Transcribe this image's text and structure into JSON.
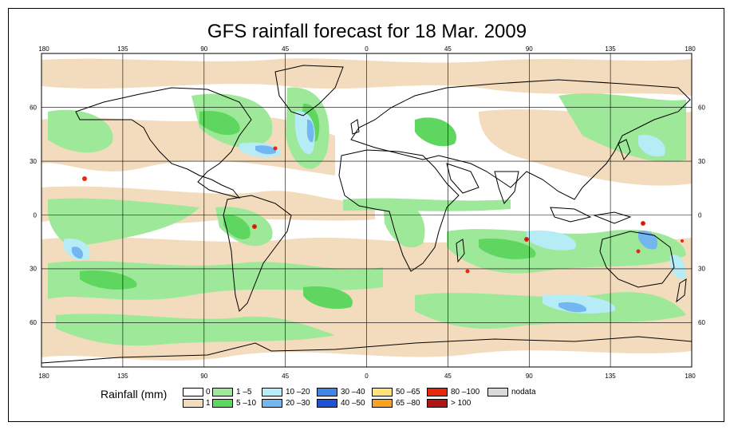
{
  "title": "GFS rainfall forecast for 18 Mar. 2009",
  "lon_ticks": [
    "180",
    "135",
    "90",
    "45",
    "0",
    "45",
    "90",
    "135",
    "180"
  ],
  "lat_ticks_left": [
    "60",
    "30",
    "0",
    "30",
    "60"
  ],
  "lat_ticks_right": [
    "60",
    "30",
    "0",
    "30",
    "60"
  ],
  "legend": {
    "title": "Rainfall (mm)",
    "items": [
      {
        "label": "0",
        "color": "#ffffff"
      },
      {
        "label": "1",
        "color": "#f2dcbd"
      },
      {
        "label": "1 –5",
        "color": "#9ee89a"
      },
      {
        "label": "5 –10",
        "color": "#5fd65f"
      },
      {
        "label": "10 –20",
        "color": "#b6ecf6"
      },
      {
        "label": "20 –30",
        "color": "#73b6f0"
      },
      {
        "label": "30 –40",
        "color": "#3f86e6"
      },
      {
        "label": "40 –50",
        "color": "#1f52d6"
      },
      {
        "label": "50 –65",
        "color": "#ffe27a"
      },
      {
        "label": "65 –80",
        "color": "#f9a21b"
      },
      {
        "label": "80 –100",
        "color": "#e8280e"
      },
      {
        "label": "> 100",
        "color": "#b01414"
      },
      {
        "label": "nodata",
        "color": "#d9d9d9"
      }
    ]
  }
}
